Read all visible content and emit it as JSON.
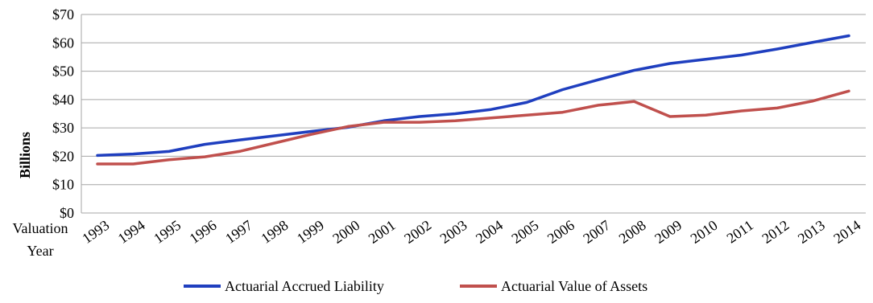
{
  "chart_data": {
    "type": "line",
    "title": "",
    "xlabel": "Valuation Year",
    "xlabel_lines": [
      "Valuation",
      "Year"
    ],
    "ylabel": "Billions",
    "ylim": [
      0,
      70
    ],
    "y_ticks": [
      0,
      10,
      20,
      30,
      40,
      50,
      60,
      70
    ],
    "y_tick_labels": [
      "$0",
      "$10",
      "$20",
      "$30",
      "$40",
      "$50",
      "$60",
      "$70"
    ],
    "grid": "horizontal",
    "legend_position": "bottom",
    "categories": [
      "1993",
      "1994",
      "1995",
      "1996",
      "1997",
      "1998",
      "1999",
      "2000",
      "2001",
      "2002",
      "2003",
      "2004",
      "2005",
      "2006",
      "2007",
      "2008",
      "2009",
      "2010",
      "2011",
      "2012",
      "2013",
      "2014"
    ],
    "series": [
      {
        "name": "Actuarial Accrued Liability",
        "color": "#1f3fbf",
        "values": [
          20.3,
          20.8,
          21.7,
          24.2,
          25.8,
          27.3,
          28.8,
          30.2,
          32.5,
          34.0,
          35.0,
          36.5,
          39.0,
          43.5,
          47.0,
          50.3,
          52.7,
          54.2,
          55.7,
          57.8,
          60.2,
          62.5
        ]
      },
      {
        "name": "Actuarial Value of Assets",
        "color": "#c0504d",
        "values": [
          17.3,
          17.3,
          18.8,
          19.8,
          21.8,
          24.8,
          27.8,
          30.5,
          32.0,
          32.0,
          32.5,
          33.5,
          34.5,
          35.5,
          38.0,
          39.3,
          34.0,
          34.5,
          36.0,
          37.0,
          39.5,
          43.0
        ]
      }
    ]
  }
}
